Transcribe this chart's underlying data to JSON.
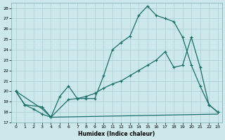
{
  "xlabel": "Humidex (Indice chaleur)",
  "bg_color": "#cce8ea",
  "line_color": "#1a6e6a",
  "grid_color": "#aacfd4",
  "xlim": [
    -0.5,
    23.5
  ],
  "ylim": [
    17,
    28.5
  ],
  "yticks": [
    17,
    18,
    19,
    20,
    21,
    22,
    23,
    24,
    25,
    26,
    27,
    28
  ],
  "xticks": [
    0,
    1,
    2,
    3,
    4,
    5,
    6,
    7,
    8,
    9,
    10,
    11,
    12,
    13,
    14,
    15,
    16,
    17,
    18,
    19,
    20,
    21,
    22,
    23
  ],
  "line1_x": [
    0,
    1,
    2,
    3,
    4,
    5,
    6,
    7,
    8,
    9,
    10,
    11,
    12,
    13,
    14,
    15,
    16,
    17,
    18,
    19,
    20,
    21,
    22,
    23
  ],
  "line1_y": [
    20,
    18.7,
    18.3,
    17.8,
    17.5,
    19.5,
    20.5,
    19.3,
    19.3,
    19.3,
    21.5,
    24.0,
    24.7,
    25.3,
    27.3,
    28.2,
    27.3,
    27.0,
    26.7,
    25.2,
    22.5,
    20.5,
    18.7,
    18.0
  ],
  "line2_x": [
    0,
    1,
    3,
    4,
    6,
    7,
    8,
    9,
    10,
    11,
    12,
    13,
    14,
    15,
    16,
    17,
    18,
    19,
    20,
    21,
    22,
    23
  ],
  "line2_y": [
    20,
    18.7,
    18.5,
    17.5,
    19.2,
    19.3,
    19.5,
    19.8,
    20.3,
    20.7,
    21.0,
    21.5,
    22.0,
    22.5,
    23.0,
    23.8,
    22.3,
    22.5,
    25.2,
    22.3,
    18.7,
    18.0
  ],
  "line3_x": [
    0,
    3,
    4,
    23
  ],
  "line3_y": [
    20,
    18.3,
    17.5,
    17.8
  ]
}
